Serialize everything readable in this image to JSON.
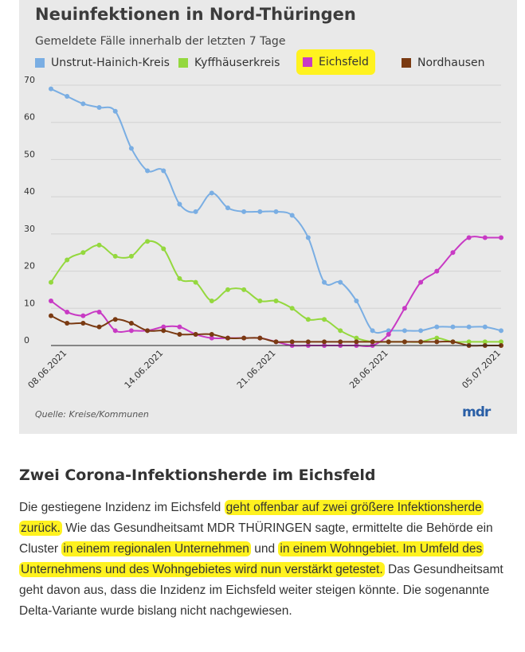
{
  "chart_data": {
    "type": "line",
    "title": "Neuinfektionen in Nord-Thüringen",
    "subtitle": "Gemeldete Fälle innerhalb der letzten 7 Tage",
    "source": "Quelle: Kreise/Kommunen",
    "logo": "mdr",
    "ylim": [
      0,
      70
    ],
    "yticks": [
      0,
      10,
      20,
      30,
      40,
      50,
      60,
      70
    ],
    "grid": true,
    "legend_position": "top",
    "x_dates": [
      "07.06.2021",
      "08.06.2021",
      "09.06.2021",
      "10.06.2021",
      "11.06.2021",
      "12.06.2021",
      "13.06.2021",
      "14.06.2021",
      "15.06.2021",
      "16.06.2021",
      "17.06.2021",
      "18.06.2021",
      "19.06.2021",
      "20.06.2021",
      "21.06.2021",
      "22.06.2021",
      "23.06.2021",
      "24.06.2021",
      "25.06.2021",
      "26.06.2021",
      "27.06.2021",
      "28.06.2021",
      "29.06.2021",
      "30.06.2021",
      "01.07.2021",
      "02.07.2021",
      "03.07.2021",
      "04.07.2021",
      "05.07.2021"
    ],
    "xticks": [
      "08.06.2021",
      "14.06.2021",
      "21.06.2021",
      "28.06.2021",
      "05.07.2021"
    ],
    "series": [
      {
        "name": "Unstrut-Hainich-Kreis",
        "color": "#7aaee3",
        "highlighted": false,
        "values": [
          69,
          67,
          65,
          64,
          63,
          53,
          47,
          47,
          38,
          36,
          41,
          37,
          36,
          36,
          36,
          35,
          29,
          17,
          17,
          12,
          4,
          4,
          4,
          4,
          5,
          5,
          5,
          5,
          4
        ]
      },
      {
        "name": "Kyffhäuserkreis",
        "color": "#94d83e",
        "highlighted": false,
        "values": [
          17,
          23,
          25,
          27,
          24,
          24,
          28,
          26,
          18,
          17,
          12,
          15,
          15,
          12,
          12,
          10,
          7,
          7,
          4,
          2,
          1,
          1,
          1,
          1,
          2,
          1,
          1,
          1,
          1
        ]
      },
      {
        "name": "Eichsfeld",
        "color": "#c83ac4",
        "highlighted": true,
        "values": [
          12,
          9,
          8,
          9,
          4,
          4,
          4,
          5,
          5,
          3,
          2,
          2,
          2,
          2,
          1,
          0,
          0,
          0,
          0,
          0,
          0,
          3,
          10,
          17,
          20,
          25,
          29,
          29,
          29
        ]
      },
      {
        "name": "Nordhausen",
        "color": "#7a3a12",
        "highlighted": false,
        "values": [
          8,
          6,
          6,
          5,
          7,
          6,
          4,
          4,
          3,
          3,
          3,
          2,
          2,
          2,
          1,
          1,
          1,
          1,
          1,
          1,
          1,
          1,
          1,
          1,
          1,
          1,
          0,
          0,
          0
        ]
      }
    ]
  },
  "article": {
    "heading": "Zwei Corona-Infektionsherde im Eichsfeld",
    "segments": [
      {
        "text": "Die gestiegene Inzidenz im Eichsfeld ",
        "highlight": false
      },
      {
        "text": "geht offenbar auf zwei größere Infektionsherde zurück.",
        "highlight": true
      },
      {
        "text": " Wie das Gesundheitsamt MDR THÜRINGEN sagte, ermittelte die Behörde ein Cluster ",
        "highlight": false
      },
      {
        "text": "in einem regionalen Unternehmen",
        "highlight": true
      },
      {
        "text": " und ",
        "highlight": false
      },
      {
        "text": "in einem Wohngebiet. Im Umfeld des Unternehmens und des Wohngebietes wird nun verstärkt getestet.",
        "highlight": true
      },
      {
        "text": " Das Gesundheitsamt geht davon aus, dass die Inzidenz im Eichsfeld weiter steigen könnte. Die sogenannte Delta-Variante wurde bislang nicht nachgewiesen.",
        "highlight": false
      }
    ]
  }
}
